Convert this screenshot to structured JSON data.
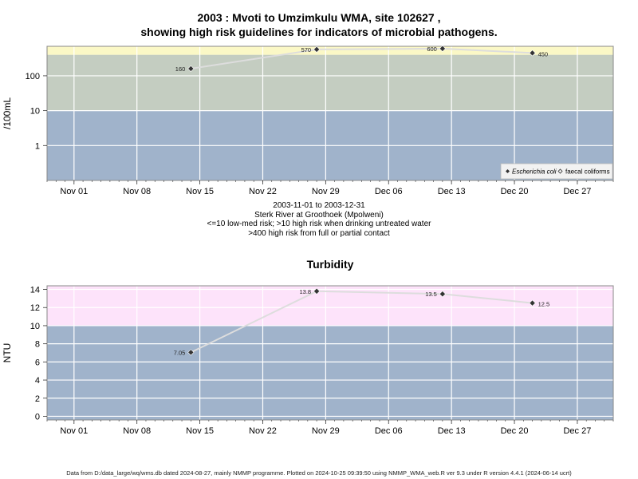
{
  "header": {
    "title_line1": "2003 : Mvoti to Umzimkulu WMA, site 102627 ,",
    "title_line2": "showing high risk guidelines for indicators of microbial pathogens."
  },
  "caption": {
    "line1": "2003-11-01 to 2003-12-31",
    "line2": "Sterk River at Groothoek (Mpolweni)",
    "line3": "<=10 low-med risk; >10 high risk when drinking untreated water",
    "line4": ">400 high risk from full or partial contact"
  },
  "footer": "Data from D:/data_large/wq/wms.db dated 2024-08-27, mainly NMMP programme. Plotted on 2024-10-25 09:39:50 using NMMP_WMA_web.R ver 9.3 under R version 4.4.1 (2024-06-14 ucrt)",
  "colors": {
    "low_band": "#a0b3cb",
    "mid_band": "#c4cdc1",
    "high_band_micro": "#fbf8c6",
    "high_band_turb": "#fde3fa",
    "line": "#dddddd",
    "point": "#333333",
    "grid": "#ffffff"
  },
  "chart_data": [
    {
      "type": "scatter",
      "title": "",
      "xlabel": "",
      "ylabel": "/100mL",
      "y_scale": "log",
      "x_tick_labels": [
        "Nov 01",
        "Nov 08",
        "Nov 15",
        "Nov 22",
        "Nov 29",
        "Dec 06",
        "Dec 13",
        "Dec 20",
        "Dec 27"
      ],
      "x_ticks": [
        "2003-11-01",
        "2003-11-08",
        "2003-11-15",
        "2003-11-22",
        "2003-11-29",
        "2003-12-06",
        "2003-12-13",
        "2003-12-20",
        "2003-12-27"
      ],
      "xlim": [
        "2003-10-29",
        "2003-12-31"
      ],
      "y_ticks": [
        1,
        10,
        100
      ],
      "y_tick_labels": [
        "1",
        "10",
        "100"
      ],
      "ylim": [
        0.1,
        700
      ],
      "risk_bands": [
        {
          "from": 0.1,
          "to": 10,
          "color_key": "low_band"
        },
        {
          "from": 10,
          "to": 400,
          "color_key": "mid_band"
        },
        {
          "from": 400,
          "to": 700,
          "color_key": "high_band_micro"
        }
      ],
      "legend": {
        "position": "bottom-right",
        "entries": [
          "Escherichia coli",
          "faecal coliforms"
        ]
      },
      "series": [
        {
          "name": "Escherichia coli",
          "points": [
            {
              "x": "2003-11-14",
              "y": 160,
              "label": "160"
            },
            {
              "x": "2003-11-28",
              "y": 570,
              "label": "570"
            },
            {
              "x": "2003-12-12",
              "y": 600,
              "label": "600"
            },
            {
              "x": "2003-12-22",
              "y": 450,
              "label": "450"
            }
          ]
        }
      ]
    },
    {
      "type": "scatter",
      "title": "Turbidity",
      "xlabel": "",
      "ylabel": "NTU",
      "y_scale": "linear",
      "x_tick_labels": [
        "Nov 01",
        "Nov 08",
        "Nov 15",
        "Nov 22",
        "Nov 29",
        "Dec 06",
        "Dec 13",
        "Dec 20",
        "Dec 27"
      ],
      "x_ticks": [
        "2003-11-01",
        "2003-11-08",
        "2003-11-15",
        "2003-11-22",
        "2003-11-29",
        "2003-12-06",
        "2003-12-13",
        "2003-12-20",
        "2003-12-27"
      ],
      "xlim": [
        "2003-10-29",
        "2003-12-31"
      ],
      "y_ticks": [
        0,
        2,
        4,
        6,
        8,
        10,
        12,
        14
      ],
      "y_tick_labels": [
        "0",
        "2",
        "4",
        "6",
        "8",
        "10",
        "12",
        "14"
      ],
      "ylim": [
        -0.4,
        14.4
      ],
      "risk_bands": [
        {
          "from": -0.4,
          "to": 10,
          "color_key": "low_band"
        },
        {
          "from": 10,
          "to": 14.4,
          "color_key": "high_band_turb"
        }
      ],
      "series": [
        {
          "name": "",
          "points": [
            {
              "x": "2003-11-14",
              "y": 7.05,
              "label": "7.05"
            },
            {
              "x": "2003-11-28",
              "y": 13.8,
              "label": "13.8"
            },
            {
              "x": "2003-12-12",
              "y": 13.5,
              "label": "13.5"
            },
            {
              "x": "2003-12-22",
              "y": 12.5,
              "label": "12.5"
            }
          ]
        }
      ]
    }
  ]
}
